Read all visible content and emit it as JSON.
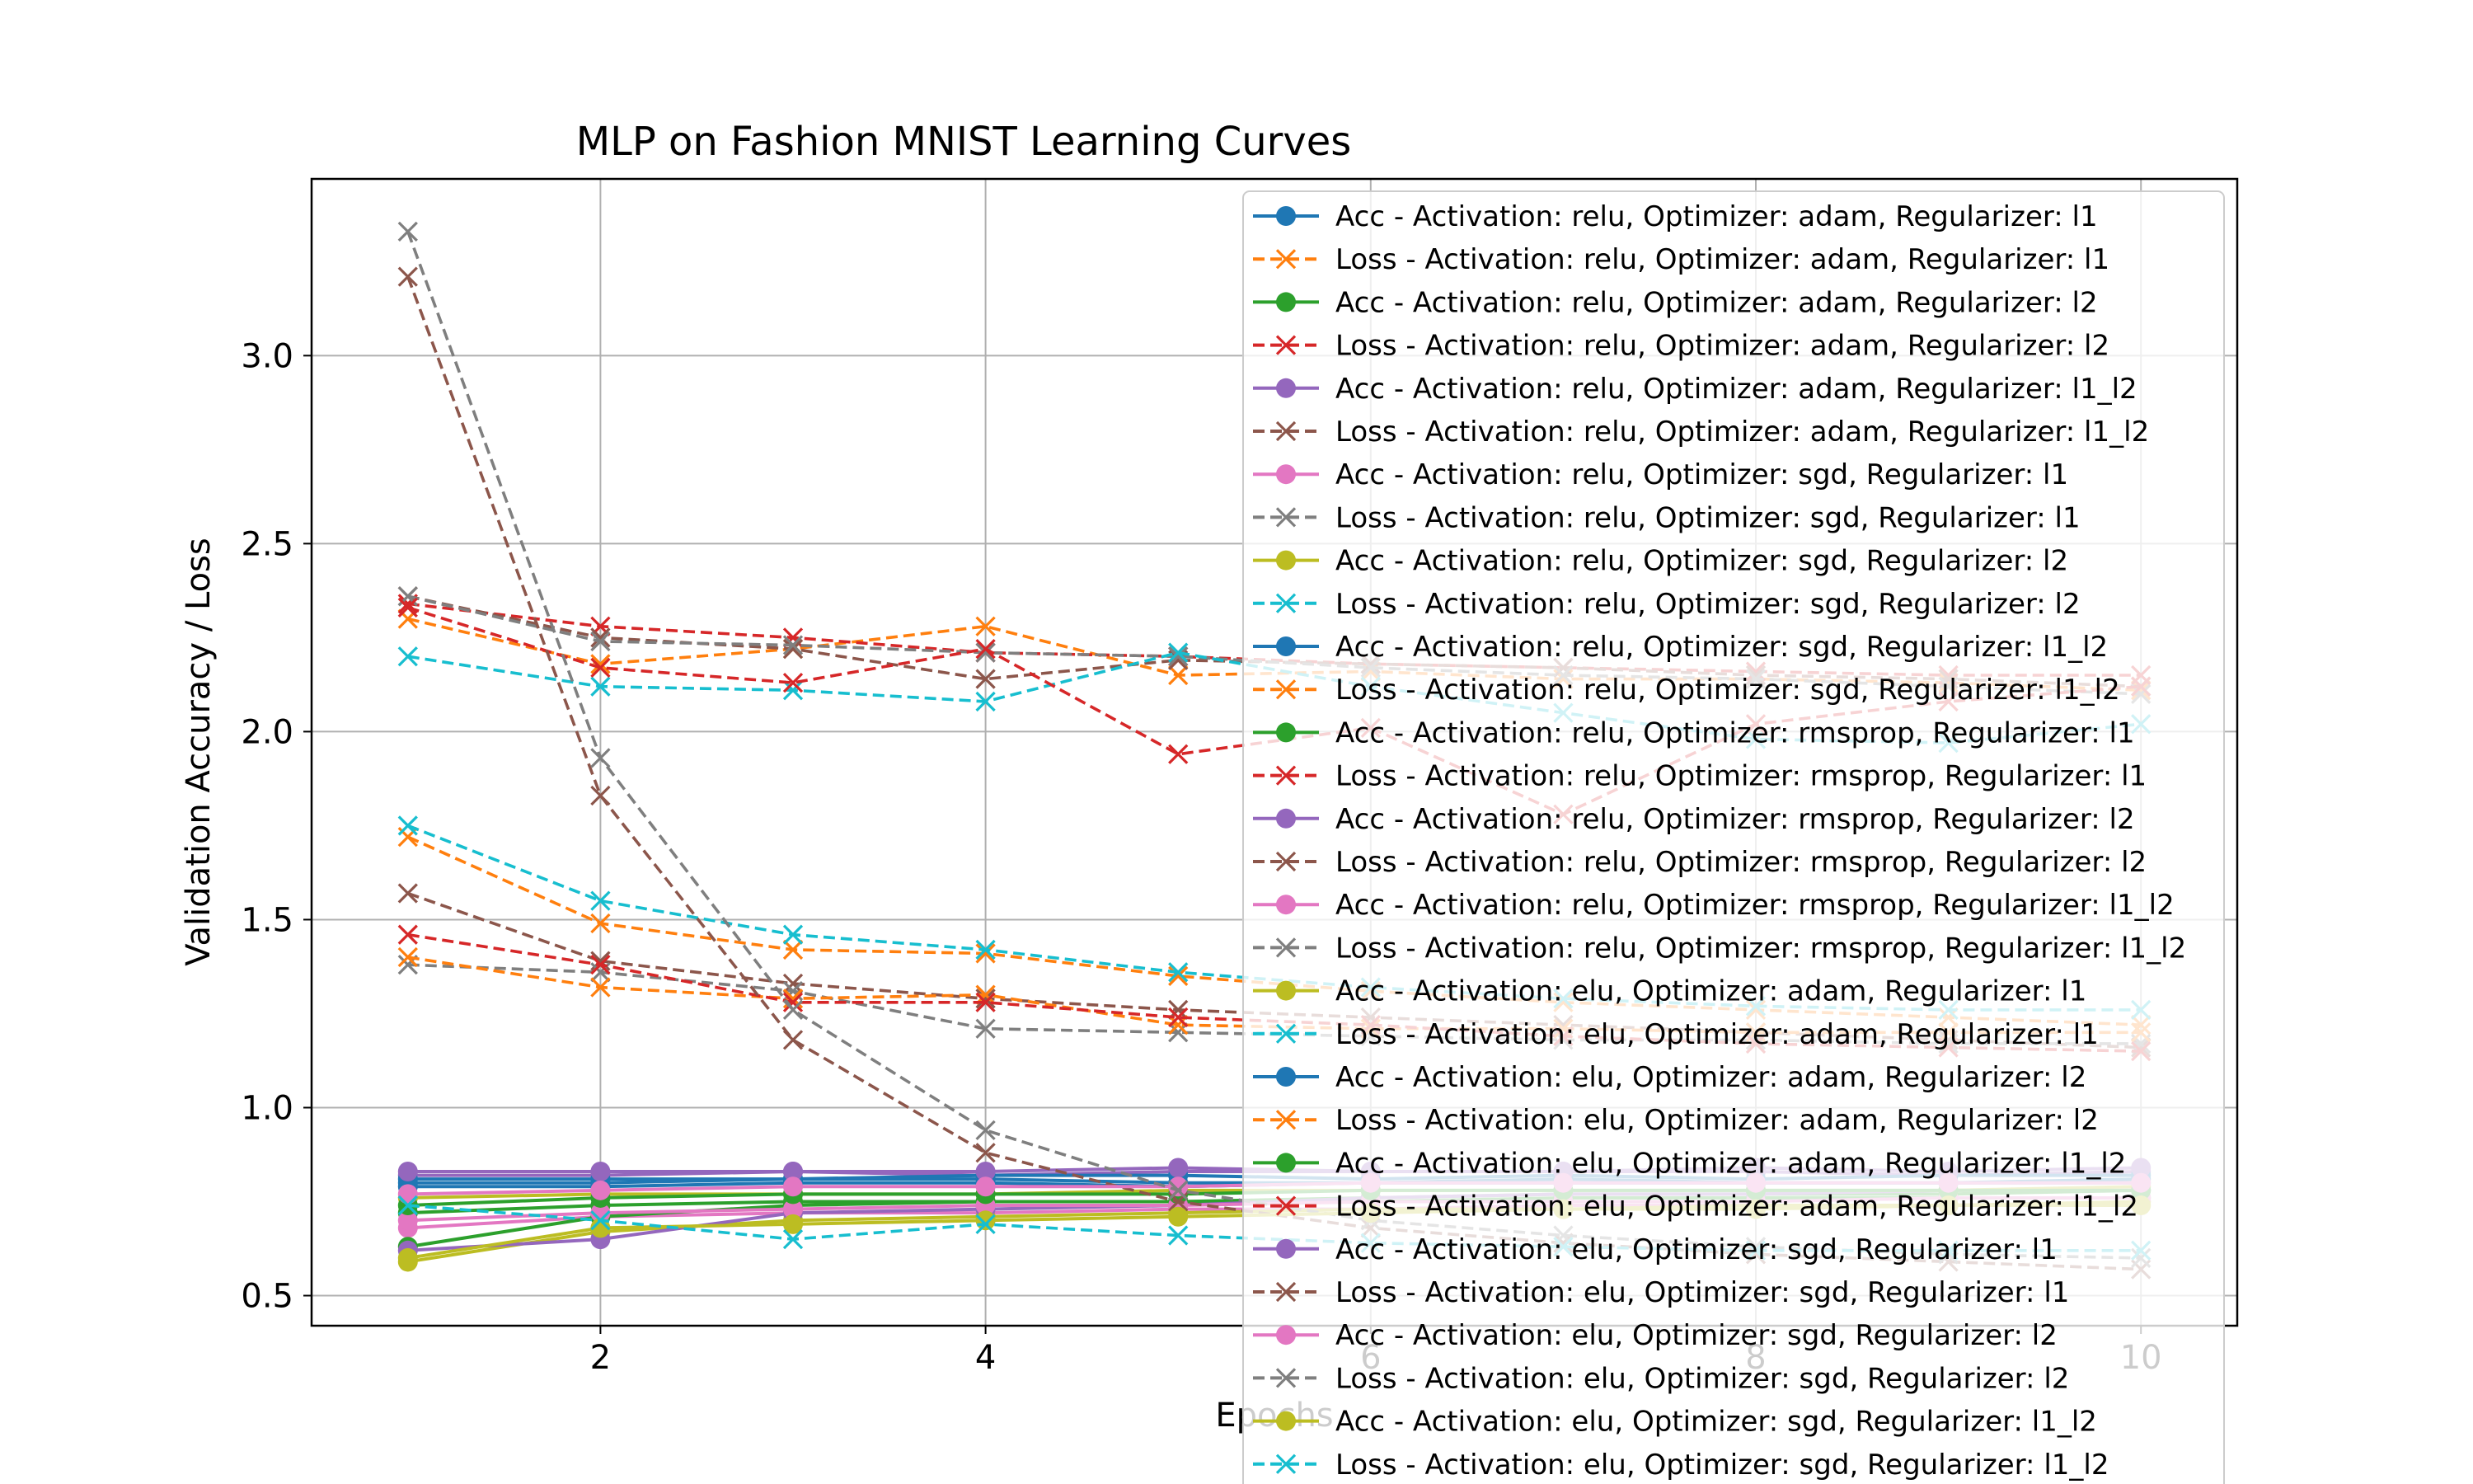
{
  "chart_data": {
    "type": "line",
    "title": "MLP on Fashion MNIST Learning Curves",
    "xlabel": "Epochs",
    "ylabel": "Validation Accuracy / Loss",
    "xlim": [
      0.5,
      10.5
    ],
    "ylim": [
      0.42,
      3.47
    ],
    "xticks": [
      "2",
      "4",
      "6",
      "8",
      "10"
    ],
    "yticks": [
      "0.5",
      "1.0",
      "1.5",
      "2.0",
      "2.5",
      "3.0"
    ],
    "grid": true,
    "legend_position": "upper-right",
    "x": [
      1,
      2,
      3,
      4,
      5,
      6,
      7,
      8,
      9,
      10
    ],
    "colors": [
      "#1f77b4",
      "#ff7f0e",
      "#2ca02c",
      "#d62728",
      "#9467bd",
      "#8c564b",
      "#e377c2",
      "#7f7f7f",
      "#bcbd22",
      "#17becf"
    ],
    "series": [
      {
        "name": "Acc - Activation: relu, Optimizer: adam, Regularizer: l1",
        "kind": "acc",
        "values": [
          0.8,
          0.8,
          0.81,
          0.81,
          0.8,
          0.8,
          0.81,
          0.8,
          0.8,
          0.81
        ]
      },
      {
        "name": "Loss - Activation: relu, Optimizer: adam, Regularizer: l1",
        "kind": "loss",
        "values": [
          2.3,
          2.18,
          2.22,
          2.28,
          2.15,
          2.16,
          2.14,
          2.14,
          2.13,
          2.11
        ]
      },
      {
        "name": "Acc - Activation: relu, Optimizer: adam, Regularizer: l2",
        "kind": "acc",
        "values": [
          0.72,
          0.74,
          0.75,
          0.75,
          0.75,
          0.75,
          0.76,
          0.76,
          0.76,
          0.76
        ]
      },
      {
        "name": "Loss - Activation: relu, Optimizer: adam, Regularizer: l2",
        "kind": "loss",
        "values": [
          2.34,
          2.28,
          2.25,
          2.21,
          2.2,
          2.18,
          2.17,
          2.16,
          2.15,
          2.15
        ]
      },
      {
        "name": "Acc - Activation: relu, Optimizer: adam, Regularizer: l1_l2",
        "kind": "acc",
        "values": [
          0.82,
          0.82,
          0.83,
          0.82,
          0.83,
          0.83,
          0.83,
          0.83,
          0.82,
          0.83
        ]
      },
      {
        "name": "Loss - Activation: relu, Optimizer: adam, Regularizer: l1_l2",
        "kind": "loss",
        "values": [
          2.36,
          2.25,
          2.22,
          2.14,
          2.19,
          2.18,
          2.17,
          2.15,
          2.14,
          2.12
        ]
      },
      {
        "name": "Acc - Activation: relu, Optimizer: sgd, Regularizer: l1",
        "kind": "acc",
        "values": [
          0.68,
          0.71,
          0.72,
          0.72,
          0.73,
          0.73,
          0.74,
          0.74,
          0.74,
          0.75
        ]
      },
      {
        "name": "Loss - Activation: relu, Optimizer: sgd, Regularizer: l1",
        "kind": "loss",
        "values": [
          2.36,
          2.24,
          2.23,
          2.21,
          2.2,
          2.17,
          2.15,
          2.14,
          2.12,
          2.1
        ]
      },
      {
        "name": "Acc - Activation: relu, Optimizer: sgd, Regularizer: l2",
        "kind": "acc",
        "values": [
          0.59,
          0.67,
          0.7,
          0.71,
          0.72,
          0.73,
          0.73,
          0.74,
          0.74,
          0.75
        ]
      },
      {
        "name": "Loss - Activation: relu, Optimizer: sgd, Regularizer: l2",
        "kind": "loss",
        "values": [
          2.2,
          2.12,
          2.11,
          2.08,
          2.21,
          2.12,
          2.05,
          1.98,
          1.97,
          2.02
        ]
      },
      {
        "name": "Acc - Activation: relu, Optimizer: sgd, Regularizer: l1_l2",
        "kind": "acc",
        "values": [
          0.79,
          0.79,
          0.8,
          0.8,
          0.79,
          0.8,
          0.8,
          0.8,
          0.8,
          0.8
        ]
      },
      {
        "name": "Loss - Activation: relu, Optimizer: sgd, Regularizer: l1_l2",
        "kind": "loss",
        "values": [
          1.72,
          1.49,
          1.42,
          1.41,
          1.35,
          1.31,
          1.28,
          1.26,
          1.24,
          1.22
        ]
      },
      {
        "name": "Acc - Activation: relu, Optimizer: rmsprop, Regularizer: l1",
        "kind": "acc",
        "values": [
          0.63,
          0.71,
          0.74,
          0.75,
          0.75,
          0.76,
          0.77,
          0.77,
          0.77,
          0.78
        ]
      },
      {
        "name": "Loss - Activation: relu, Optimizer: rmsprop, Regularizer: l1",
        "kind": "loss",
        "values": [
          2.33,
          2.17,
          2.13,
          2.22,
          1.94,
          2.01,
          1.78,
          2.02,
          2.08,
          2.12
        ]
      },
      {
        "name": "Acc - Activation: relu, Optimizer: rmsprop, Regularizer: l2",
        "kind": "acc",
        "values": [
          0.62,
          0.65,
          0.72,
          0.73,
          0.74,
          0.76,
          0.77,
          0.77,
          0.78,
          0.78
        ]
      },
      {
        "name": "Loss - Activation: relu, Optimizer: rmsprop, Regularizer: l2",
        "kind": "loss",
        "values": [
          1.57,
          1.39,
          1.33,
          1.29,
          1.26,
          1.24,
          1.22,
          1.2,
          1.18,
          1.16
        ]
      },
      {
        "name": "Acc - Activation: relu, Optimizer: rmsprop, Regularizer: l1_l2",
        "kind": "acc",
        "values": [
          0.7,
          0.72,
          0.73,
          0.74,
          0.74,
          0.75,
          0.75,
          0.75,
          0.76,
          0.76
        ]
      },
      {
        "name": "Loss - Activation: relu, Optimizer: rmsprop, Regularizer: l1_l2",
        "kind": "loss",
        "values": [
          1.38,
          1.36,
          1.31,
          1.21,
          1.2,
          1.19,
          1.18,
          1.18,
          1.17,
          1.17
        ]
      },
      {
        "name": "Acc - Activation: elu, Optimizer: adam, Regularizer: l1",
        "kind": "acc",
        "values": [
          0.76,
          0.77,
          0.77,
          0.77,
          0.78,
          0.78,
          0.78,
          0.78,
          0.78,
          0.79
        ]
      },
      {
        "name": "Loss - Activation: elu, Optimizer: adam, Regularizer: l1",
        "kind": "loss",
        "values": [
          1.75,
          1.55,
          1.46,
          1.42,
          1.36,
          1.32,
          1.29,
          1.27,
          1.26,
          1.26
        ]
      },
      {
        "name": "Acc - Activation: elu, Optimizer: adam, Regularizer: l2",
        "kind": "acc",
        "values": [
          0.81,
          0.81,
          0.81,
          0.82,
          0.82,
          0.81,
          0.82,
          0.81,
          0.82,
          0.82
        ]
      },
      {
        "name": "Loss - Activation: elu, Optimizer: adam, Regularizer: l2",
        "kind": "loss",
        "values": [
          1.4,
          1.32,
          1.29,
          1.3,
          1.22,
          1.21,
          1.21,
          1.2,
          1.2,
          1.2
        ]
      },
      {
        "name": "Acc - Activation: elu, Optimizer: adam, Regularizer: l1_l2",
        "kind": "acc",
        "values": [
          0.74,
          0.76,
          0.77,
          0.77,
          0.77,
          0.78,
          0.78,
          0.78,
          0.78,
          0.78
        ]
      },
      {
        "name": "Loss - Activation: elu, Optimizer: adam, Regularizer: l1_l2",
        "kind": "loss",
        "values": [
          1.46,
          1.38,
          1.28,
          1.28,
          1.24,
          1.22,
          1.19,
          1.17,
          1.16,
          1.15
        ]
      },
      {
        "name": "Acc - Activation: elu, Optimizer: sgd, Regularizer: l1",
        "kind": "acc",
        "values": [
          0.83,
          0.83,
          0.83,
          0.83,
          0.84,
          0.83,
          0.83,
          0.84,
          0.83,
          0.84
        ]
      },
      {
        "name": "Loss - Activation: elu, Optimizer: sgd, Regularizer: l1",
        "kind": "loss",
        "values": [
          3.21,
          1.83,
          1.18,
          0.88,
          0.75,
          0.68,
          0.64,
          0.61,
          0.59,
          0.57
        ]
      },
      {
        "name": "Acc - Activation: elu, Optimizer: sgd, Regularizer: l2",
        "kind": "acc",
        "values": [
          0.77,
          0.78,
          0.79,
          0.79,
          0.79,
          0.8,
          0.8,
          0.8,
          0.8,
          0.8
        ]
      },
      {
        "name": "Loss - Activation: elu, Optimizer: sgd, Regularizer: l2",
        "kind": "loss",
        "values": [
          3.33,
          1.93,
          1.26,
          0.94,
          0.78,
          0.7,
          0.66,
          0.63,
          0.61,
          0.6
        ]
      },
      {
        "name": "Acc - Activation: elu, Optimizer: sgd, Regularizer: l1_l2",
        "kind": "acc",
        "values": [
          0.6,
          0.68,
          0.69,
          0.7,
          0.71,
          0.72,
          0.73,
          0.73,
          0.74,
          0.74
        ]
      },
      {
        "name": "Loss - Activation: elu, Optimizer: sgd, Regularizer: l1_l2",
        "kind": "loss",
        "values": [
          0.74,
          0.7,
          0.65,
          0.69,
          0.66,
          0.64,
          0.63,
          0.62,
          0.62,
          0.62
        ]
      }
    ]
  }
}
